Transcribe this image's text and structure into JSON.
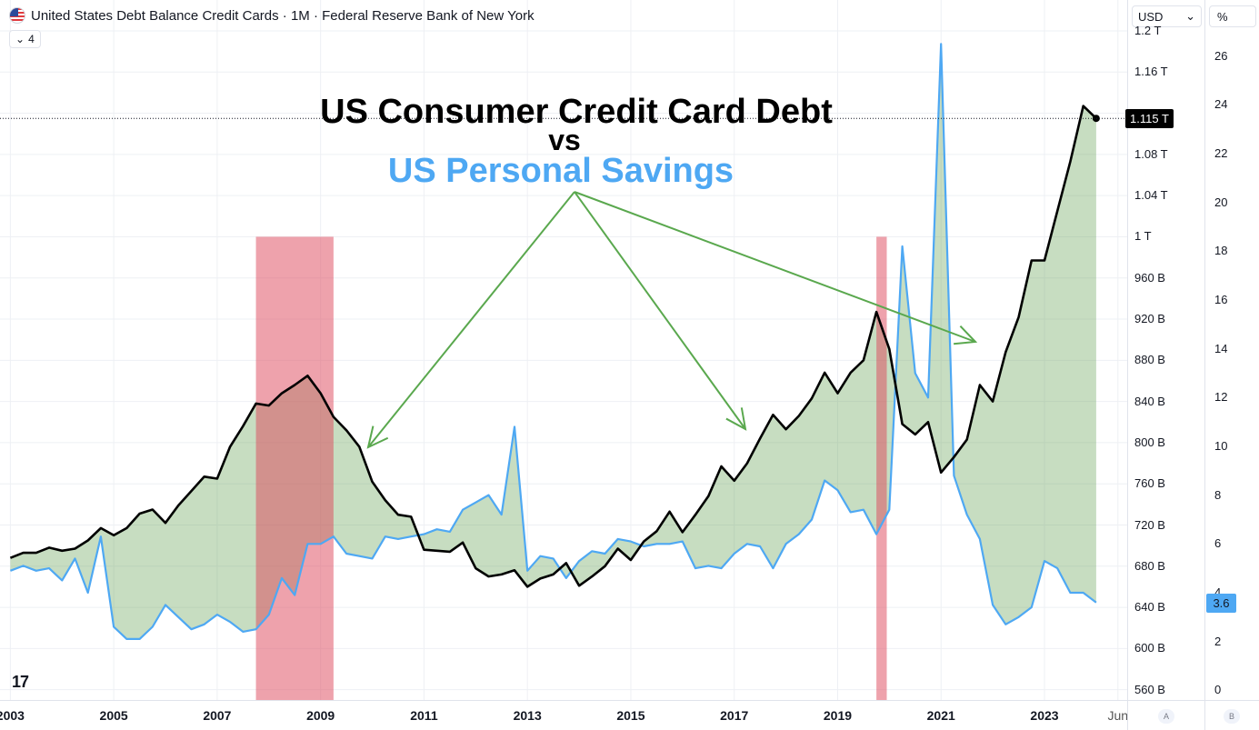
{
  "legend": {
    "title": "United States Debt Balance Credit Cards · 1M · Federal Reserve Bank of New York",
    "indicator_count": "4",
    "chevron": "⌄"
  },
  "scale_controls": {
    "currency": "USD",
    "currency_chevron": "⌄",
    "percent": "%",
    "btn_a": "A",
    "btn_b": "B"
  },
  "annotations": {
    "title_line1": "US Consumer Credit Card Debt",
    "title_line2": "vs",
    "title_line3": "US Personal Savings",
    "title_color": "#000000",
    "savings_color": "#4ea8f3",
    "arrow_color": "#5aa84e"
  },
  "badges": {
    "debt_last": "1.115 T",
    "savings_last": "3.6"
  },
  "watermark": "17",
  "chart_data": {
    "type": "line",
    "x_axis": {
      "tick_labels": [
        "2003",
        "2005",
        "2007",
        "2009",
        "2011",
        "2013",
        "2015",
        "2017",
        "2019",
        "2021",
        "2023",
        "Jun"
      ],
      "range": [
        2002.8,
        2024.6
      ]
    },
    "left_axis": {
      "unit": "USD",
      "range": [
        550,
        1230
      ],
      "tick_values": [
        560,
        600,
        640,
        680,
        720,
        760,
        800,
        840,
        880,
        920,
        960,
        1000,
        1040,
        1080,
        1120,
        1160,
        1200
      ],
      "tick_labels": [
        "560 B",
        "600 B",
        "640 B",
        "680 B",
        "720 B",
        "760 B",
        "800 B",
        "840 B",
        "880 B",
        "920 B",
        "960 B",
        "1 T",
        "1.04 T",
        "1.08 T",
        "1.12 T",
        "1.16 T",
        "1.2 T"
      ]
    },
    "right_axis": {
      "unit": "%",
      "range": [
        -0.4,
        28.3
      ],
      "tick_values": [
        0,
        2,
        4,
        6,
        8,
        10,
        12,
        14,
        16,
        18,
        20,
        22,
        24,
        26
      ],
      "tick_labels": [
        "0",
        "2",
        "4",
        "6",
        "8",
        "10",
        "12",
        "14",
        "16",
        "18",
        "20",
        "22",
        "24",
        "26"
      ]
    },
    "grid": true,
    "recessions": [
      {
        "start": 2007.75,
        "end": 2009.25,
        "top": 1000
      },
      {
        "start": 2019.75,
        "end": 2019.95,
        "top": 1000
      }
    ],
    "series": [
      {
        "name": "United States Debt Balance Credit Cards",
        "axis": "left",
        "color": "#000000",
        "x": [
          2003.0,
          2003.25,
          2003.5,
          2003.75,
          2004.0,
          2004.25,
          2004.5,
          2004.75,
          2005.0,
          2005.25,
          2005.5,
          2005.75,
          2006.0,
          2006.25,
          2006.5,
          2006.75,
          2007.0,
          2007.25,
          2007.5,
          2007.75,
          2008.0,
          2008.25,
          2008.5,
          2008.75,
          2009.0,
          2009.25,
          2009.5,
          2009.75,
          2010.0,
          2010.25,
          2010.5,
          2010.75,
          2011.0,
          2011.25,
          2011.5,
          2011.75,
          2012.0,
          2012.25,
          2012.5,
          2012.75,
          2013.0,
          2013.25,
          2013.5,
          2013.75,
          2014.0,
          2014.25,
          2014.5,
          2014.75,
          2015.0,
          2015.25,
          2015.5,
          2015.75,
          2016.0,
          2016.25,
          2016.5,
          2016.75,
          2017.0,
          2017.25,
          2017.5,
          2017.75,
          2018.0,
          2018.25,
          2018.5,
          2018.75,
          2019.0,
          2019.25,
          2019.5,
          2019.75,
          2020.0,
          2020.25,
          2020.5,
          2020.75,
          2021.0,
          2021.25,
          2021.5,
          2021.75,
          2022.0,
          2022.25,
          2022.5,
          2022.75,
          2023.0,
          2023.25,
          2023.5,
          2023.75,
          2024.0
        ],
        "values": [
          688,
          693,
          693,
          698,
          695,
          697,
          705,
          717,
          710,
          717,
          731,
          735,
          722,
          739,
          753,
          767,
          765,
          796,
          816,
          838,
          836,
          848,
          856,
          865,
          848,
          825,
          812,
          796,
          762,
          744,
          730,
          728,
          696,
          695,
          694,
          703,
          678,
          670,
          672,
          676,
          660,
          668,
          672,
          683,
          661,
          670,
          680,
          697,
          686,
          704,
          714,
          733,
          713,
          730,
          748,
          777,
          763,
          780,
          804,
          827,
          813,
          826,
          843,
          868,
          848,
          868,
          880,
          927,
          891,
          818,
          808,
          820,
          771,
          786,
          803,
          856,
          840,
          888,
          922,
          977,
          977,
          1025,
          1073,
          1127,
          1115
        ]
      },
      {
        "name": "US Personal Savings",
        "axis": "right",
        "color": "#4ea8f3",
        "x": [
          2003.0,
          2003.25,
          2003.5,
          2003.75,
          2004.0,
          2004.25,
          2004.5,
          2004.75,
          2005.0,
          2005.25,
          2005.5,
          2005.75,
          2006.0,
          2006.25,
          2006.5,
          2006.75,
          2007.0,
          2007.25,
          2007.5,
          2007.75,
          2008.0,
          2008.25,
          2008.5,
          2008.75,
          2009.0,
          2009.25,
          2009.5,
          2009.75,
          2010.0,
          2010.25,
          2010.5,
          2010.75,
          2011.0,
          2011.25,
          2011.5,
          2011.75,
          2012.0,
          2012.25,
          2012.5,
          2012.75,
          2013.0,
          2013.25,
          2013.5,
          2013.75,
          2014.0,
          2014.25,
          2014.5,
          2014.75,
          2015.0,
          2015.25,
          2015.5,
          2015.75,
          2016.0,
          2016.25,
          2016.5,
          2016.75,
          2017.0,
          2017.25,
          2017.5,
          2017.75,
          2018.0,
          2018.25,
          2018.5,
          2018.75,
          2019.0,
          2019.25,
          2019.5,
          2019.75,
          2020.0,
          2020.25,
          2020.5,
          2020.75,
          2021.0,
          2021.25,
          2021.5,
          2021.75,
          2022.0,
          2022.25,
          2022.5,
          2022.75,
          2023.0,
          2023.25,
          2023.5,
          2023.75,
          2024.0
        ],
        "values": [
          4.9,
          5.1,
          4.9,
          5.0,
          4.5,
          5.4,
          4.0,
          6.3,
          2.6,
          2.1,
          2.1,
          2.6,
          3.5,
          3.0,
          2.5,
          2.7,
          3.1,
          2.8,
          2.4,
          2.5,
          3.1,
          4.6,
          3.9,
          6.0,
          6.0,
          6.3,
          5.6,
          5.5,
          5.4,
          6.3,
          6.2,
          6.3,
          6.4,
          6.6,
          6.5,
          7.4,
          7.7,
          8.0,
          7.2,
          10.8,
          4.9,
          5.5,
          5.4,
          4.6,
          5.3,
          5.7,
          5.6,
          6.2,
          6.1,
          5.9,
          6.0,
          6.0,
          6.1,
          5.0,
          5.1,
          5.0,
          5.6,
          6.0,
          5.9,
          5.0,
          6.0,
          6.4,
          7.0,
          8.6,
          8.2,
          7.3,
          7.4,
          6.4,
          7.4,
          18.2,
          13.0,
          12.0,
          26.5,
          8.8,
          7.2,
          6.2,
          3.5,
          2.7,
          3.0,
          3.4,
          5.3,
          5.0,
          4.0,
          4.0,
          3.6
        ]
      }
    ]
  }
}
